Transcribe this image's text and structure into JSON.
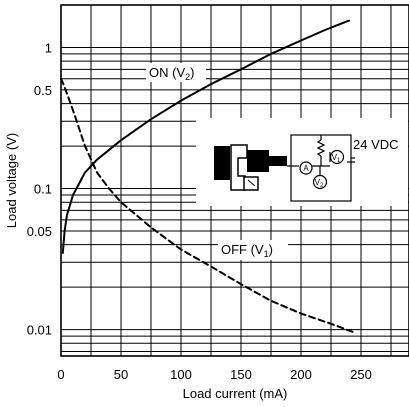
{
  "chart_data": {
    "type": "line",
    "title": "",
    "xlabel": "Load current (mA)",
    "ylabel": "Load voltage (V)",
    "xscale": "linear",
    "yscale": "log",
    "xlim": [
      0,
      290
    ],
    "ylim": [
      0.0065,
      2.0
    ],
    "grid": true,
    "x_ticks": [
      0,
      50,
      100,
      150,
      200,
      250
    ],
    "x_tick_labels": [
      "0",
      "50",
      "100",
      "150",
      "200",
      "250"
    ],
    "y_ticks": [
      0.01,
      0.05,
      0.1,
      0.5,
      1
    ],
    "y_tick_labels": [
      "0.01",
      "0.05",
      "0.1",
      "0.5",
      "1"
    ],
    "series": [
      {
        "name": "ON",
        "label_main": "ON (V",
        "label_sub": "2",
        "label_end": ")",
        "style": "solid",
        "points": [
          [
            1.5,
            0.035
          ],
          [
            3,
            0.05
          ],
          [
            5,
            0.065
          ],
          [
            10,
            0.09
          ],
          [
            20,
            0.13
          ],
          [
            30,
            0.16
          ],
          [
            50,
            0.22
          ],
          [
            75,
            0.31
          ],
          [
            100,
            0.42
          ],
          [
            125,
            0.55
          ],
          [
            150,
            0.7
          ],
          [
            175,
            0.9
          ],
          [
            200,
            1.12
          ],
          [
            220,
            1.33
          ],
          [
            240,
            1.55
          ]
        ]
      },
      {
        "name": "OFF",
        "label_main": "OFF (V",
        "label_sub": "1",
        "label_end": ")",
        "style": "dashed",
        "points": [
          [
            0,
            0.6
          ],
          [
            2,
            0.55
          ],
          [
            5,
            0.47
          ],
          [
            8,
            0.4
          ],
          [
            12,
            0.32
          ],
          [
            20,
            0.2
          ],
          [
            30,
            0.13
          ],
          [
            40,
            0.1
          ],
          [
            50,
            0.08
          ],
          [
            75,
            0.053
          ],
          [
            100,
            0.037
          ],
          [
            125,
            0.028
          ],
          [
            150,
            0.021
          ],
          [
            175,
            0.016
          ],
          [
            200,
            0.013
          ],
          [
            225,
            0.011
          ],
          [
            245,
            0.0095
          ]
        ]
      }
    ]
  },
  "inset": {
    "supply_label": "24 VDC",
    "meter_a_label": "A",
    "meter_v1_label": "V",
    "meter_v1_sub": "1",
    "meter_v2_label": "V",
    "meter_v2_sub": "2"
  }
}
